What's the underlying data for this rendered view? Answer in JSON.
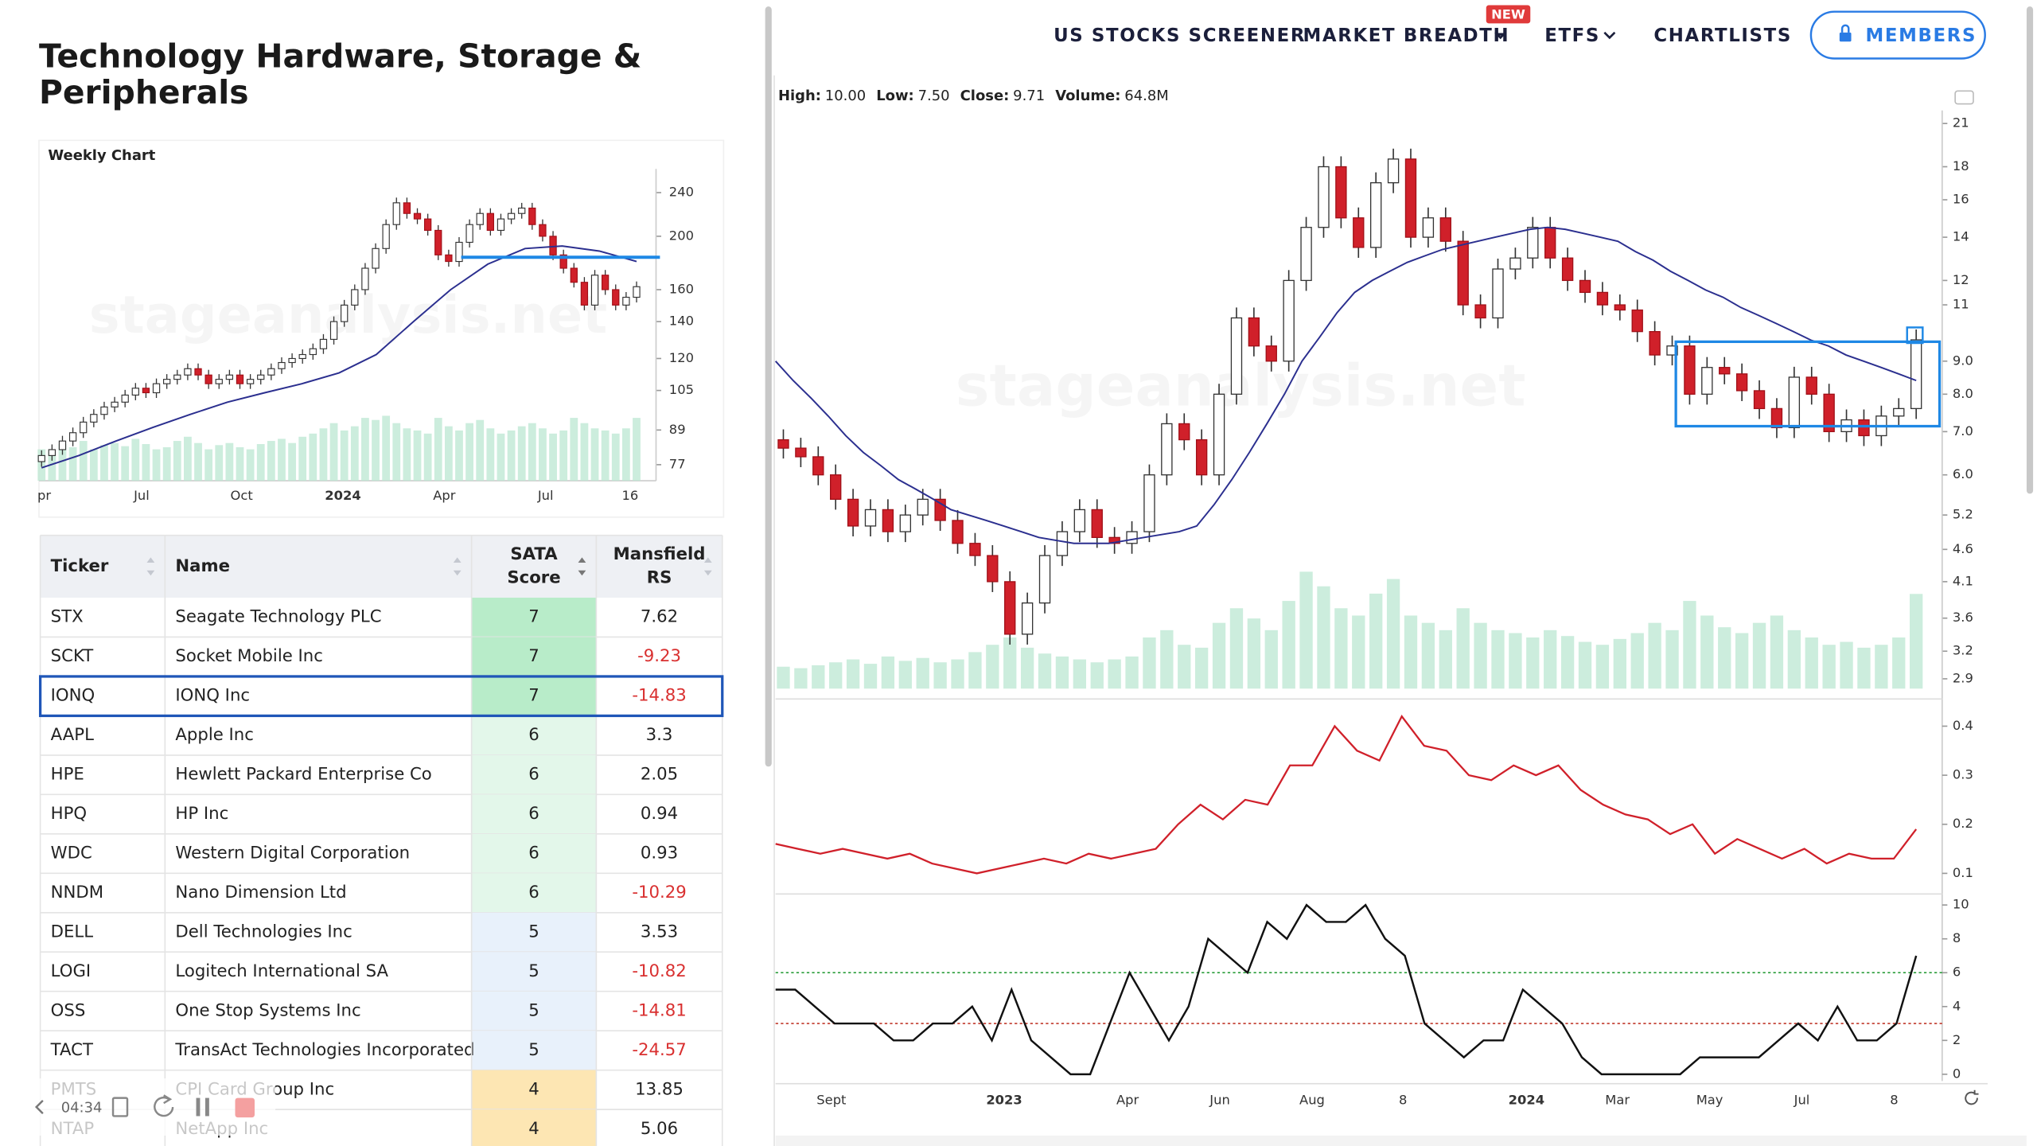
{
  "nav": {
    "items": [
      "US STOCKS SCREENER",
      "MARKET BREADTH",
      "ETFS",
      "CHARTLISTS"
    ],
    "badge": "NEW",
    "members": "MEMBERS"
  },
  "title_lines": [
    "Technology Hardware, Storage &",
    "Peripherals"
  ],
  "watermark": "stageanalysis.net",
  "weekly": {
    "label": "Weekly Chart",
    "log": true,
    "ylim": [
      72,
      265
    ],
    "yticks": [
      240,
      200,
      160,
      140,
      120,
      105,
      89,
      77
    ],
    "xticks": [
      "pr",
      "Jul",
      "Oct",
      "2024",
      "Apr",
      "Jul",
      "16"
    ],
    "open": [
      78,
      80,
      82,
      85,
      88,
      92,
      95,
      98,
      100,
      103,
      106,
      104,
      108,
      110,
      112,
      115,
      112,
      108,
      110,
      112,
      108,
      110,
      112,
      115,
      118,
      120,
      122,
      125,
      130,
      140,
      150,
      160,
      175,
      190,
      210,
      230,
      220,
      215,
      205,
      185,
      180,
      195,
      210,
      220,
      205,
      215,
      220,
      225,
      210,
      200,
      185,
      175,
      165,
      150,
      170,
      160,
      150,
      155
    ],
    "close": [
      80,
      82,
      85,
      88,
      92,
      95,
      98,
      100,
      103,
      106,
      104,
      108,
      110,
      112,
      115,
      112,
      108,
      110,
      112,
      108,
      110,
      112,
      115,
      118,
      120,
      122,
      125,
      130,
      140,
      150,
      160,
      175,
      190,
      210,
      230,
      220,
      215,
      205,
      185,
      180,
      195,
      210,
      220,
      205,
      215,
      220,
      225,
      210,
      200,
      185,
      175,
      165,
      150,
      170,
      160,
      150,
      155,
      162
    ],
    "ma": [
      76,
      80,
      85,
      90,
      95,
      100,
      104,
      108,
      113,
      122,
      140,
      160,
      178,
      190,
      192,
      188,
      180
    ],
    "volume": [
      30,
      28,
      35,
      32,
      38,
      30,
      34,
      36,
      33,
      40,
      35,
      30,
      32,
      38,
      42,
      36,
      30,
      34,
      36,
      32,
      30,
      35,
      38,
      40,
      36,
      42,
      45,
      50,
      55,
      48,
      52,
      60,
      58,
      62,
      55,
      50,
      48,
      45,
      60,
      52,
      48,
      55,
      58,
      50,
      45,
      48,
      52,
      55,
      50,
      45,
      48,
      60,
      55,
      50,
      48,
      45,
      50,
      60
    ]
  },
  "table": {
    "headers": [
      "Ticker",
      "Name",
      "SATA Score",
      "Mansfield RS"
    ],
    "rows": [
      [
        "STX",
        "Seagate Technology PLC",
        7,
        7.62
      ],
      [
        "SCKT",
        "Socket Mobile Inc",
        7,
        -9.23
      ],
      [
        "IONQ",
        "IONQ Inc",
        7,
        -14.83
      ],
      [
        "AAPL",
        "Apple Inc",
        6,
        3.3
      ],
      [
        "HPE",
        "Hewlett Packard Enterprise Co",
        6,
        2.05
      ],
      [
        "HPQ",
        "HP Inc",
        6,
        0.94
      ],
      [
        "WDC",
        "Western Digital Corporation",
        6,
        0.93
      ],
      [
        "NNDM",
        "Nano Dimension Ltd",
        6,
        -10.29
      ],
      [
        "DELL",
        "Dell Technologies Inc",
        5,
        3.53
      ],
      [
        "LOGI",
        "Logitech International SA",
        5,
        -10.82
      ],
      [
        "OSS",
        "One Stop Systems Inc",
        5,
        -14.81
      ],
      [
        "TACT",
        "TransAct Technologies Incorporated",
        5,
        -24.57
      ],
      [
        "PMTS",
        "CPI Card Group Inc",
        4,
        13.85
      ],
      [
        "NTAP",
        "NetApp Inc",
        4,
        5.06
      ]
    ],
    "selected": 2
  },
  "recorder": {
    "time": "04:34"
  },
  "main": {
    "info": [
      [
        "High:",
        "10.00"
      ],
      [
        "Low:",
        "7.50"
      ],
      [
        "Close:",
        "9.71"
      ],
      [
        "Volume:",
        "64.8M"
      ]
    ],
    "log": true,
    "ylim": [
      2.8,
      22
    ],
    "yticks": [
      21,
      18,
      16,
      14,
      12,
      11,
      {
        "value": 9,
        "label": "9.0"
      },
      {
        "value": 8,
        "label": "8.0"
      },
      {
        "value": 7,
        "label": "7.0"
      },
      {
        "value": 6,
        "label": "6.0"
      },
      5.2,
      4.6,
      4.1,
      3.6,
      3.2,
      2.9
    ],
    "xticks": [
      "Sept",
      "2023",
      "Apr",
      "Jun",
      "Aug",
      "8",
      "2024",
      "Mar",
      "May",
      "Jul",
      "8"
    ],
    "open": [
      6.8,
      6.6,
      6.4,
      6.0,
      5.5,
      5.0,
      5.3,
      4.9,
      5.2,
      5.5,
      5.1,
      4.7,
      4.5,
      4.1,
      3.4,
      3.8,
      4.5,
      4.9,
      5.3,
      4.8,
      4.7,
      4.9,
      6.0,
      7.2,
      6.8,
      6.0,
      8.0,
      10.5,
      9.5,
      9.0,
      12.0,
      14.5,
      18.0,
      15.0,
      13.5,
      17.0,
      18.5,
      14.0,
      15.0,
      13.8,
      11.0,
      10.5,
      12.5,
      13.0,
      14.5,
      13.0,
      12.0,
      11.5,
      11.0,
      10.8,
      10.0,
      9.2,
      9.5,
      8.0,
      8.8,
      8.6,
      8.1,
      7.6,
      7.1,
      8.5,
      8.0,
      7.0,
      7.3,
      6.9,
      7.4,
      7.6
    ],
    "close": [
      6.6,
      6.4,
      6.0,
      5.5,
      5.0,
      5.3,
      4.9,
      5.2,
      5.5,
      5.1,
      4.7,
      4.5,
      4.1,
      3.4,
      3.8,
      4.5,
      4.9,
      5.3,
      4.8,
      4.7,
      4.9,
      6.0,
      7.2,
      6.8,
      6.0,
      8.0,
      10.5,
      9.5,
      9.0,
      12.0,
      14.5,
      18.0,
      15.0,
      13.5,
      17.0,
      18.5,
      14.0,
      15.0,
      13.8,
      11.0,
      10.5,
      12.5,
      13.0,
      14.5,
      13.0,
      12.0,
      11.5,
      11.0,
      10.8,
      10.0,
      9.2,
      9.5,
      8.0,
      8.8,
      8.6,
      8.1,
      7.6,
      7.1,
      8.5,
      8.0,
      7.0,
      7.3,
      6.9,
      7.4,
      7.6,
      9.71
    ],
    "ma": [
      9.0,
      8.4,
      7.9,
      7.4,
      6.9,
      6.5,
      6.2,
      5.9,
      5.7,
      5.5,
      5.3,
      5.2,
      5.1,
      5.0,
      4.9,
      4.8,
      4.75,
      4.7,
      4.7,
      4.7,
      4.75,
      4.8,
      4.85,
      4.9,
      5.0,
      5.4,
      5.9,
      6.5,
      7.2,
      8.0,
      9.0,
      9.8,
      10.7,
      11.5,
      12.0,
      12.4,
      12.8,
      13.1,
      13.4,
      13.6,
      13.8,
      14.0,
      14.2,
      14.4,
      14.5,
      14.4,
      14.2,
      14.0,
      13.8,
      13.3,
      12.9,
      12.4,
      12.0,
      11.6,
      11.3,
      10.9,
      10.6,
      10.3,
      10.0,
      9.7,
      9.5,
      9.2,
      9.0,
      8.8,
      8.6,
      8.4
    ],
    "volume": [
      15,
      14,
      16,
      18,
      20,
      17,
      22,
      19,
      21,
      18,
      20,
      25,
      30,
      35,
      28,
      24,
      22,
      20,
      18,
      20,
      22,
      35,
      40,
      30,
      28,
      45,
      55,
      48,
      40,
      60,
      80,
      70,
      55,
      50,
      65,
      75,
      50,
      45,
      40,
      55,
      45,
      40,
      38,
      35,
      40,
      36,
      32,
      30,
      34,
      38,
      45,
      40,
      60,
      50,
      42,
      38,
      45,
      50,
      40,
      35,
      30,
      32,
      28,
      30,
      35,
      64.8
    ]
  },
  "rs": {
    "ylim": [
      0.066,
      0.45
    ],
    "yticks": [
      0.4,
      0.3,
      0.2,
      0.1
    ],
    "color": "#d0202a",
    "values": [
      0.16,
      0.15,
      0.14,
      0.15,
      0.14,
      0.13,
      0.14,
      0.12,
      0.11,
      0.1,
      0.11,
      0.12,
      0.13,
      0.12,
      0.14,
      0.13,
      0.14,
      0.15,
      0.2,
      0.24,
      0.21,
      0.25,
      0.24,
      0.32,
      0.32,
      0.4,
      0.35,
      0.33,
      0.42,
      0.36,
      0.35,
      0.3,
      0.29,
      0.32,
      0.3,
      0.32,
      0.27,
      0.24,
      0.22,
      0.21,
      0.18,
      0.2,
      0.14,
      0.17,
      0.15,
      0.13,
      0.15,
      0.12,
      0.14,
      0.13,
      0.13,
      0.19
    ]
  },
  "score": {
    "ylim": [
      -0.4,
      10.5
    ],
    "yticks": [
      10,
      8,
      6,
      4,
      2,
      0
    ],
    "levels": [
      {
        "value": 6,
        "color": "#2a9d3a"
      },
      {
        "value": 3,
        "color": "#c0392b"
      }
    ],
    "values": [
      5,
      5,
      4,
      3,
      3,
      3,
      2,
      2,
      3,
      3,
      4,
      2,
      5,
      2,
      1,
      0,
      0,
      3,
      6,
      4,
      2,
      4,
      8,
      7,
      6,
      9,
      8,
      10,
      9,
      9,
      10,
      8,
      7,
      3,
      2,
      1,
      2,
      2,
      5,
      4,
      3,
      1,
      0,
      0,
      0,
      0,
      0,
      1,
      1,
      1,
      1,
      2,
      3,
      2,
      4,
      2,
      2,
      3,
      7
    ]
  }
}
